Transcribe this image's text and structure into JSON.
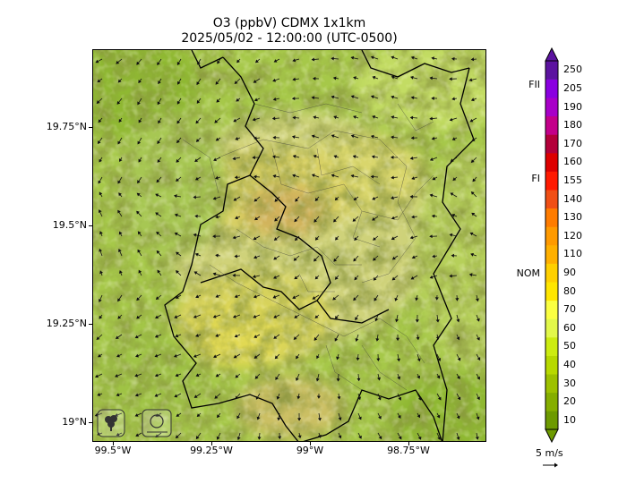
{
  "title": {
    "line1": "O3 (ppbV) CDMX 1x1km",
    "line2": "2025/05/02 - 12:00:00 (UTC-0500)"
  },
  "map": {
    "lat_labels": [
      "19.75°N",
      "19.5°N",
      "19.25°N",
      "19°N"
    ],
    "lon_labels": [
      "99.5°W",
      "99.25°W",
      "99°W",
      "98.75°W"
    ],
    "logos": [
      "sedema-logo",
      "ciudad-de-mexico-logo"
    ]
  },
  "colorbar": {
    "levels": [
      "10",
      "20",
      "30",
      "40",
      "50",
      "60",
      "70",
      "80",
      "90",
      "110",
      "120",
      "130",
      "140",
      "155",
      "160",
      "170",
      "180",
      "190",
      "205",
      "250"
    ],
    "colors": [
      "#6d9a00",
      "#85ae00",
      "#9dc100",
      "#b7d900",
      "#ccec10",
      "#e2f84a",
      "#fbff41",
      "#ffe600",
      "#ffd000",
      "#ffb000",
      "#ff9a00",
      "#ff7c00",
      "#f04f15",
      "#ff1a00",
      "#dd0000",
      "#b3003a",
      "#c3008a",
      "#a800c8",
      "#8a00e0",
      "#5c13a0"
    ],
    "thresholds": [
      {
        "label": "FII",
        "value": 205
      },
      {
        "label": "FI",
        "value": 155
      },
      {
        "label": "NOM",
        "value": 90
      }
    ]
  },
  "wind": {
    "scale_label": "5 m/s"
  }
}
